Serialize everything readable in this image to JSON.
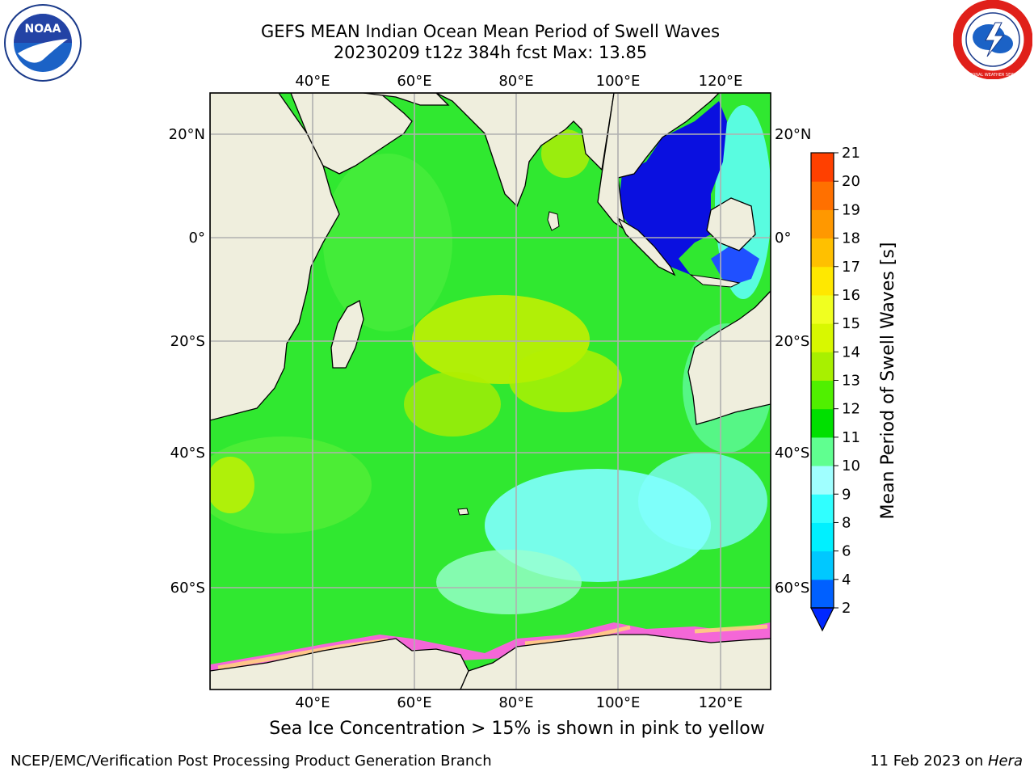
{
  "title_line1": "GEFS MEAN Indian Ocean Mean Period of Swell Waves",
  "title_line2": "20230209 t12z 384h fcst   Max: 13.85",
  "lon_labels": [
    "40°E",
    "60°E",
    "80°E",
    "100°E",
    "120°E"
  ],
  "lat_labels": [
    "20°N",
    "0°",
    "20°S",
    "40°S",
    "60°S"
  ],
  "colorbar": {
    "label": "Mean Period of Swell Waves [s]",
    "ticks": [
      "2",
      "4",
      "6",
      "8",
      "9",
      "10",
      "11",
      "12",
      "13",
      "14",
      "15",
      "16",
      "17",
      "18",
      "19",
      "20",
      "21"
    ],
    "colors": [
      "#0060ff",
      "#00c8ff",
      "#00f0ff",
      "#30ffff",
      "#a0ffff",
      "#60ff90",
      "#00e000",
      "#50f000",
      "#a8f000",
      "#d8f800",
      "#f0ff20",
      "#ffe800",
      "#ffc000",
      "#ff9800",
      "#ff7000",
      "#ff4000",
      "#ff1010",
      "#ff0000"
    ],
    "extend_color": "#0028ff"
  },
  "colors": {
    "land": "#efeedd",
    "ocean_main": "#30e830",
    "high_period": "#c8f000",
    "low_period": "#80ffff",
    "sea_ice": "#ff60e0",
    "grid": "#b0b0b0"
  },
  "caption": "Sea Ice Concentration > 15% is shown in pink to yellow",
  "footer_left": "NCEP/EMC/Verification Post Processing Product Generation Branch",
  "footer_date": "11 Feb 2023 on ",
  "footer_host": "Hera",
  "logo_left": {
    "name": "noaa-logo",
    "text": "NOAA"
  },
  "logo_right": {
    "name": "nws-logo",
    "text": "NATIONAL WEATHER SERVICE"
  }
}
